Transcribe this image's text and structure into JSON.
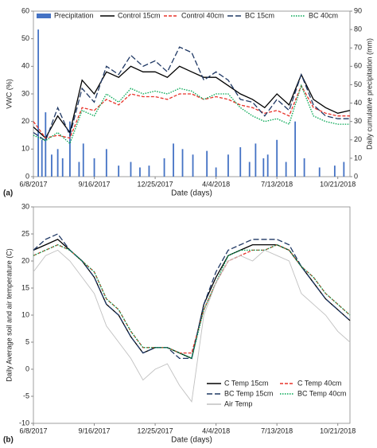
{
  "chart_data": [
    {
      "type": "line",
      "panel_label": "(a)",
      "x_label": "Date (days)",
      "y_label": "VWC (%)",
      "y2_label": "Daily cumulative precipitation (mm)",
      "legend": "top",
      "xlim": [
        0,
        520
      ],
      "xticks": [
        {
          "value": 0,
          "label": "6/8/2017"
        },
        {
          "value": 100,
          "label": "9/16/2017"
        },
        {
          "value": 200,
          "label": "12/25/2017"
        },
        {
          "value": 300,
          "label": "4/4/2018"
        },
        {
          "value": 400,
          "label": "7/13/2018"
        },
        {
          "value": 500,
          "label": "10/21/2018"
        }
      ],
      "ylim": [
        0,
        60
      ],
      "yticks": [
        0,
        10,
        20,
        30,
        40,
        50,
        60
      ],
      "y2lim": [
        0,
        90
      ],
      "y2ticks": [
        0,
        10,
        20,
        30,
        40,
        50,
        60,
        70,
        80,
        90
      ],
      "x": [
        0,
        20,
        40,
        60,
        80,
        100,
        120,
        140,
        160,
        180,
        200,
        220,
        240,
        260,
        280,
        300,
        320,
        340,
        360,
        380,
        400,
        420,
        440,
        460,
        480,
        500,
        520
      ],
      "series": [
        {
          "name": "Precipitation",
          "type": "bar",
          "axis": "y2",
          "color": "#4472c4",
          "x": [
            8,
            14,
            20,
            30,
            40,
            48,
            60,
            75,
            82,
            100,
            120,
            140,
            160,
            175,
            190,
            215,
            230,
            245,
            262,
            285,
            300,
            320,
            340,
            355,
            365,
            378,
            385,
            400,
            415,
            430,
            445,
            470,
            495,
            510
          ],
          "values": [
            80,
            20,
            35,
            12,
            15,
            10,
            30,
            8,
            18,
            10,
            15,
            6,
            8,
            5,
            6,
            10,
            18,
            15,
            12,
            14,
            5,
            12,
            16,
            8,
            18,
            10,
            12,
            20,
            8,
            30,
            10,
            5,
            6,
            8
          ]
        },
        {
          "name": "Control 15cm",
          "color": "#000000",
          "style": "solid",
          "values": [
            18,
            14,
            22,
            16,
            35,
            30,
            38,
            36,
            40,
            38,
            38,
            36,
            40,
            38,
            36,
            36,
            33,
            30,
            28,
            25,
            30,
            26,
            37,
            28,
            25,
            23,
            24
          ]
        },
        {
          "name": "Control 40cm",
          "color": "#e8332a",
          "style": "dashed",
          "values": [
            20,
            14,
            15,
            14,
            25,
            24,
            28,
            26,
            30,
            29,
            29,
            28,
            30,
            30,
            28,
            29,
            28,
            26,
            25,
            23,
            24,
            22,
            33,
            25,
            23,
            22,
            22
          ]
        },
        {
          "name": "BC 15cm",
          "color": "#1f3864",
          "style": "longdash",
          "values": [
            16,
            13,
            25,
            15,
            32,
            27,
            40,
            37,
            44,
            40,
            42,
            38,
            47,
            45,
            35,
            38,
            35,
            28,
            27,
            22,
            28,
            24,
            37,
            26,
            22,
            21,
            21
          ]
        },
        {
          "name": "BC 40cm",
          "color": "#00a651",
          "style": "dotted",
          "values": [
            15,
            13,
            16,
            12,
            24,
            22,
            30,
            27,
            32,
            30,
            31,
            30,
            32,
            31,
            28,
            30,
            30,
            25,
            22,
            20,
            21,
            19,
            33,
            22,
            20,
            19,
            19
          ]
        }
      ]
    },
    {
      "type": "line",
      "panel_label": "(b)",
      "x_label": "Date (days)",
      "y_label": "Daily Average soil and air temperature (C)",
      "legend": "lower right",
      "xlim": [
        0,
        520
      ],
      "xticks": [
        {
          "value": 0,
          "label": "6/8/2017"
        },
        {
          "value": 100,
          "label": "9/16/2017"
        },
        {
          "value": 200,
          "label": "12/25/2017"
        },
        {
          "value": 300,
          "label": "4/4/2018"
        },
        {
          "value": 400,
          "label": "7/13/2018"
        },
        {
          "value": 500,
          "label": "10/21/2018"
        }
      ],
      "ylim": [
        -10,
        30
      ],
      "yticks": [
        -10,
        -5,
        0,
        5,
        10,
        15,
        20,
        25,
        30
      ],
      "x": [
        0,
        20,
        40,
        60,
        80,
        100,
        120,
        140,
        160,
        180,
        200,
        220,
        240,
        260,
        280,
        300,
        320,
        340,
        360,
        380,
        400,
        420,
        440,
        460,
        480,
        500,
        520
      ],
      "series": [
        {
          "name": "C Temp 15cm",
          "color": "#000000",
          "style": "solid",
          "values": [
            22,
            23,
            24,
            22,
            20,
            17,
            12,
            10,
            6,
            3,
            4,
            4,
            3,
            2,
            12,
            17,
            21,
            22,
            23,
            23,
            23,
            22,
            19,
            16,
            13,
            11,
            9
          ]
        },
        {
          "name": "C Temp 40cm",
          "color": "#e8332a",
          "style": "dashed",
          "values": [
            21,
            22,
            23,
            22,
            20,
            18,
            13,
            11,
            7,
            4,
            4,
            4,
            3,
            3,
            11,
            16,
            20,
            21,
            22,
            22,
            23,
            22,
            19,
            17,
            14,
            12,
            10
          ]
        },
        {
          "name": "BC Temp 15cm",
          "color": "#1f3864",
          "style": "longdash",
          "values": [
            22,
            24,
            25,
            22,
            20,
            17,
            12,
            10,
            6,
            3,
            4,
            4,
            2,
            2,
            12,
            18,
            22,
            23,
            24,
            24,
            24,
            23,
            19,
            16,
            13,
            11,
            9
          ]
        },
        {
          "name": "BC Temp 40cm",
          "color": "#00a651",
          "style": "dotted",
          "values": [
            21,
            22,
            23,
            22,
            20,
            18,
            13,
            11,
            7,
            4,
            4,
            4,
            3,
            2,
            11,
            16,
            21,
            22,
            22,
            22,
            23,
            22,
            19,
            17,
            14,
            12,
            10
          ]
        },
        {
          "name": "Air Temp",
          "color": "#c0c0c0",
          "style": "solid",
          "values": [
            18,
            21,
            22,
            20,
            17,
            14,
            8,
            5,
            2,
            -2,
            0,
            1,
            -3,
            -6,
            10,
            16,
            20,
            21,
            20,
            22,
            21,
            20,
            14,
            12,
            10,
            7,
            5
          ]
        }
      ]
    }
  ]
}
